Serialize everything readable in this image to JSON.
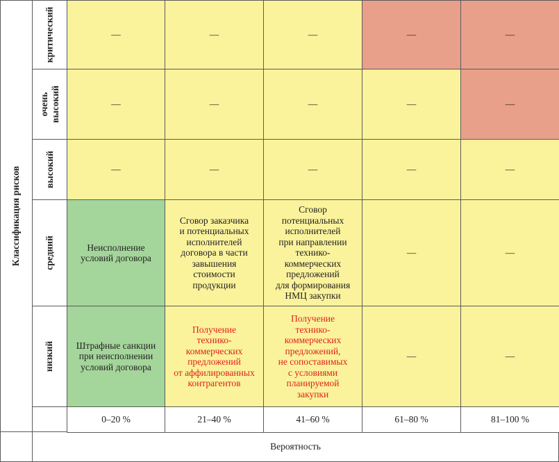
{
  "axis": {
    "y_title": "Классификация рисков",
    "x_title": "Вероятность"
  },
  "rows": [
    {
      "label_lines": [
        "критический"
      ],
      "cells": [
        {
          "text": "—",
          "color": "yellow",
          "risk": false
        },
        {
          "text": "—",
          "color": "yellow",
          "risk": false
        },
        {
          "text": "—",
          "color": "yellow",
          "risk": false
        },
        {
          "text": "—",
          "color": "red",
          "risk": false
        },
        {
          "text": "—",
          "color": "red",
          "risk": false
        }
      ]
    },
    {
      "label_lines": [
        "очень",
        "высокий"
      ],
      "cells": [
        {
          "text": "—",
          "color": "yellow",
          "risk": false
        },
        {
          "text": "—",
          "color": "yellow",
          "risk": false
        },
        {
          "text": "—",
          "color": "yellow",
          "risk": false
        },
        {
          "text": "—",
          "color": "yellow",
          "risk": false
        },
        {
          "text": "—",
          "color": "red",
          "risk": false
        }
      ]
    },
    {
      "label_lines": [
        "высокий"
      ],
      "cells": [
        {
          "text": "—",
          "color": "yellow",
          "risk": false
        },
        {
          "text": "—",
          "color": "yellow",
          "risk": false
        },
        {
          "text": "—",
          "color": "yellow",
          "risk": false
        },
        {
          "text": "—",
          "color": "yellow",
          "risk": false
        },
        {
          "text": "—",
          "color": "yellow",
          "risk": false
        }
      ]
    },
    {
      "label_lines": [
        "средний"
      ],
      "cells": [
        {
          "lines": [
            "Неисполнение",
            "условий договора"
          ],
          "color": "green",
          "risk": false
        },
        {
          "lines": [
            "Сговор заказчика",
            "и потенциальных",
            "исполнителей",
            "договора в части",
            "завышения",
            "стоимости",
            "продукции"
          ],
          "color": "yellow",
          "risk": false
        },
        {
          "lines": [
            "Сговор",
            "потенциальных",
            "исполнителей",
            "при направлении",
            "технико-",
            "коммерческих",
            "предложений",
            "для формирования",
            "НМЦ закупки"
          ],
          "color": "yellow",
          "risk": false
        },
        {
          "text": "—",
          "color": "yellow",
          "risk": false
        },
        {
          "text": "—",
          "color": "yellow",
          "risk": false
        }
      ]
    },
    {
      "label_lines": [
        "низкий"
      ],
      "cells": [
        {
          "lines": [
            "Штрафные санкции",
            "при неисполнении",
            "условий договора"
          ],
          "color": "green",
          "risk": false
        },
        {
          "lines": [
            "Получение",
            "технико-",
            "коммерческих",
            "предложений",
            "от аффилированных",
            "контрагентов"
          ],
          "color": "yellow",
          "risk": true
        },
        {
          "lines": [
            "Получение",
            "технико-",
            "коммерческих",
            "предложений,",
            "не сопоставимых",
            "с условиями",
            "планируемой",
            "закупки"
          ],
          "color": "yellow",
          "risk": true
        },
        {
          "text": "—",
          "color": "yellow",
          "risk": false
        },
        {
          "text": "—",
          "color": "yellow",
          "risk": false
        }
      ]
    }
  ],
  "columns": [
    "0–20 %",
    "21–40 %",
    "41–60 %",
    "61–80 %",
    "81–100 %"
  ],
  "colors": {
    "yellow": "#fbf39c",
    "red": "#e9a08a",
    "green": "#a4d59a",
    "risk_text": "#e0201a"
  }
}
